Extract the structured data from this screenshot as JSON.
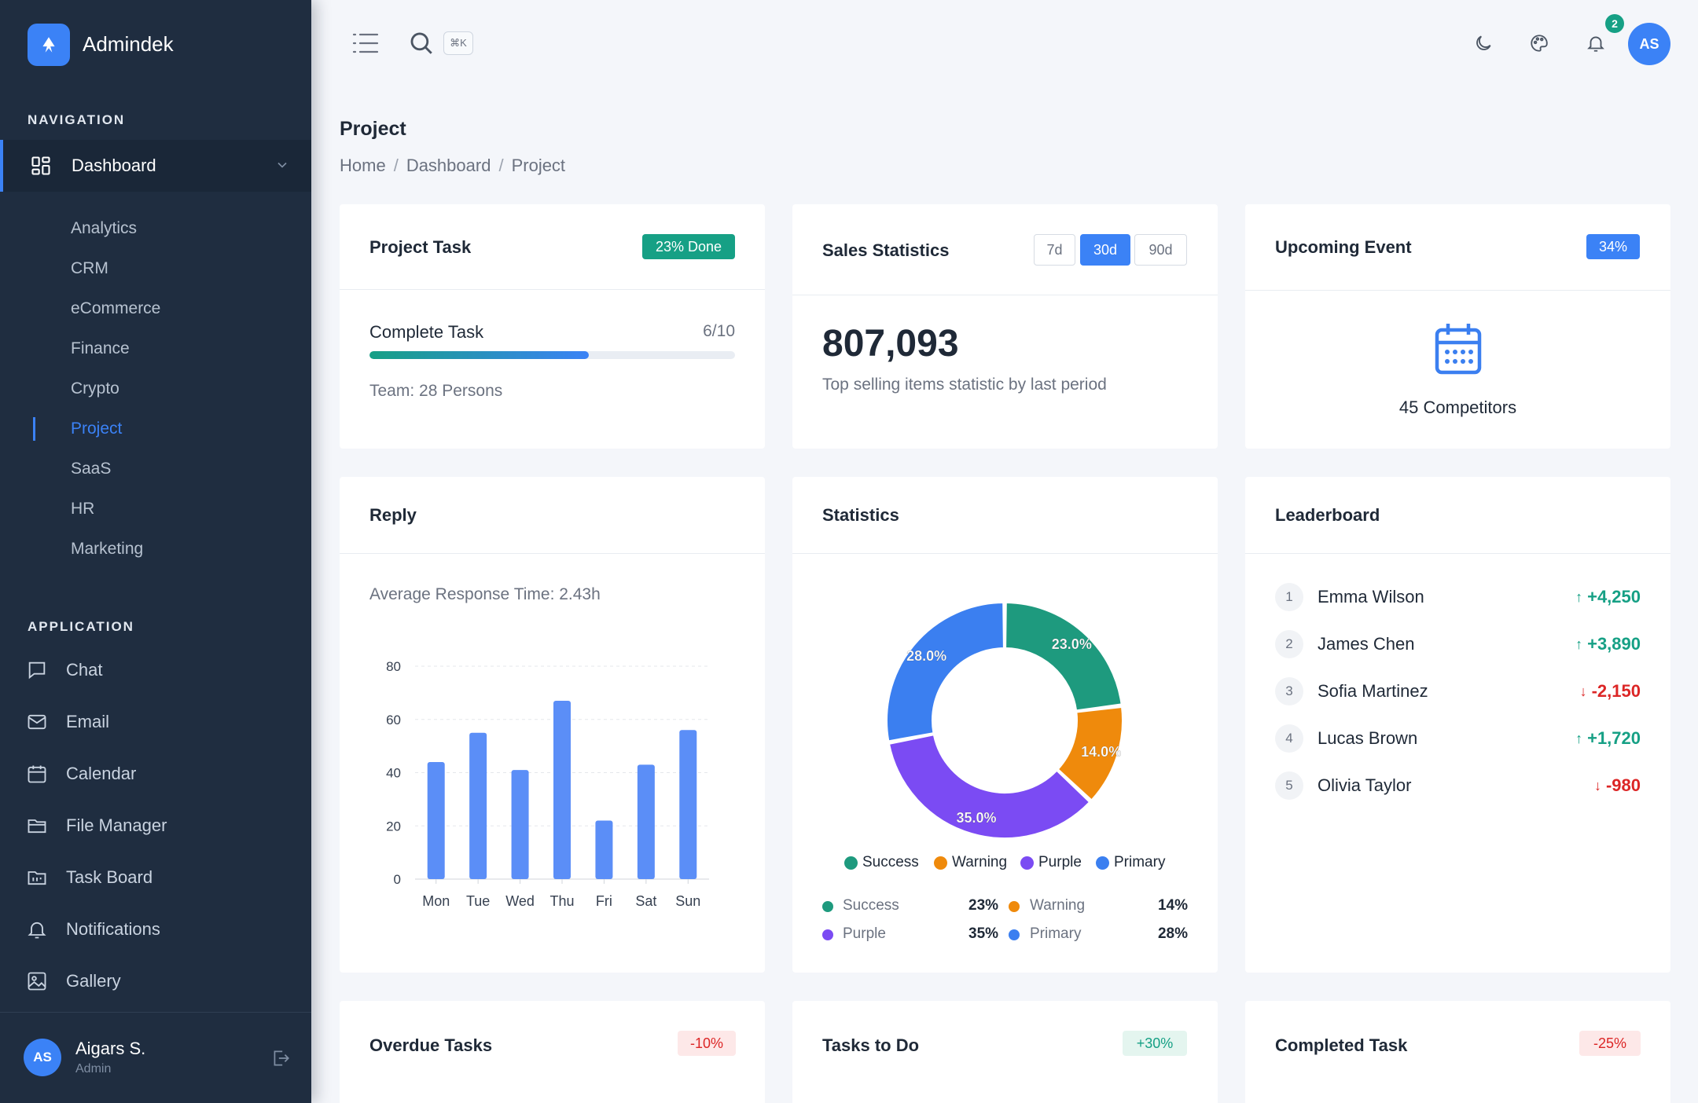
{
  "brand": {
    "name": "Admindek"
  },
  "sidebar": {
    "nav_section": "NAVIGATION",
    "dashboard_label": "Dashboard",
    "sub_items": [
      "Analytics",
      "CRM",
      "eCommerce",
      "Finance",
      "Crypto",
      "Project",
      "SaaS",
      "HR",
      "Marketing"
    ],
    "active_sub": "Project",
    "app_section": "APPLICATION",
    "app_items": [
      {
        "label": "Chat",
        "icon": "chat-icon"
      },
      {
        "label": "Email",
        "icon": "mail-icon"
      },
      {
        "label": "Calendar",
        "icon": "calendar-icon"
      },
      {
        "label": "File Manager",
        "icon": "folder-icon"
      },
      {
        "label": "Task Board",
        "icon": "task-board-icon"
      },
      {
        "label": "Notifications",
        "icon": "bell-icon"
      },
      {
        "label": "Gallery",
        "icon": "image-icon"
      }
    ],
    "user": {
      "initials": "AS",
      "name": "Aigars S.",
      "role": "Admin"
    }
  },
  "topbar": {
    "search_shortcut": "⌘K",
    "notification_count": "2",
    "avatar_initials": "AS"
  },
  "page": {
    "title": "Project",
    "breadcrumb": [
      "Home",
      "Dashboard",
      "Project"
    ]
  },
  "cards": {
    "project_task": {
      "title": "Project Task",
      "badge": "23% Done",
      "label": "Complete Task",
      "count": "6/10",
      "progress": 0.6,
      "team": "Team: 28 Persons"
    },
    "sales": {
      "title": "Sales Statistics",
      "ranges": [
        "7d",
        "30d",
        "90d"
      ],
      "active_range": "30d",
      "value": "807,093",
      "caption": "Top selling items statistic by last period"
    },
    "event": {
      "title": "Upcoming Event",
      "badge": "34%",
      "caption": "45 Competitors"
    },
    "reply": {
      "title": "Reply",
      "caption": "Average Response Time: 2.43h"
    },
    "statistics": {
      "title": "Statistics"
    },
    "leaderboard": {
      "title": "Leaderboard",
      "rows": [
        {
          "rank": "1",
          "name": "Emma Wilson",
          "score": "+4,250",
          "trend": "up"
        },
        {
          "rank": "2",
          "name": "James Chen",
          "score": "+3,890",
          "trend": "up"
        },
        {
          "rank": "3",
          "name": "Sofia Martinez",
          "score": "-2,150",
          "trend": "down"
        },
        {
          "rank": "4",
          "name": "Lucas Brown",
          "score": "+1,720",
          "trend": "up"
        },
        {
          "rank": "5",
          "name": "Olivia Taylor",
          "score": "-980",
          "trend": "down"
        }
      ]
    },
    "overdue": {
      "title": "Overdue Tasks",
      "badge": "-10%"
    },
    "todo": {
      "title": "Tasks to Do",
      "badge": "+30%"
    },
    "completed": {
      "title": "Completed Task",
      "badge": "-25%"
    }
  },
  "chart_data": [
    {
      "type": "bar",
      "categories": [
        "Mon",
        "Tue",
        "Wed",
        "Thu",
        "Fri",
        "Sat",
        "Sun"
      ],
      "values": [
        44,
        55,
        41,
        67,
        22,
        43,
        56
      ],
      "ylim": [
        0,
        80
      ],
      "yticks": [
        0,
        20,
        40,
        60,
        80
      ],
      "grid": true,
      "color": "#5b8ef7"
    },
    {
      "type": "pie",
      "donut": true,
      "categories": [
        "Success",
        "Warning",
        "Purple",
        "Primary"
      ],
      "values": [
        23,
        14,
        35,
        28
      ],
      "value_labels": [
        "23.0%",
        "14.0%",
        "35.0%",
        "28.0%"
      ],
      "legend_labels": [
        "23%",
        "14%",
        "35%",
        "28%"
      ],
      "colors": [
        "#1e9a7e",
        "#ef8a0c",
        "#7b4bf3",
        "#3b7ff0"
      ],
      "legend": "bottom"
    }
  ]
}
